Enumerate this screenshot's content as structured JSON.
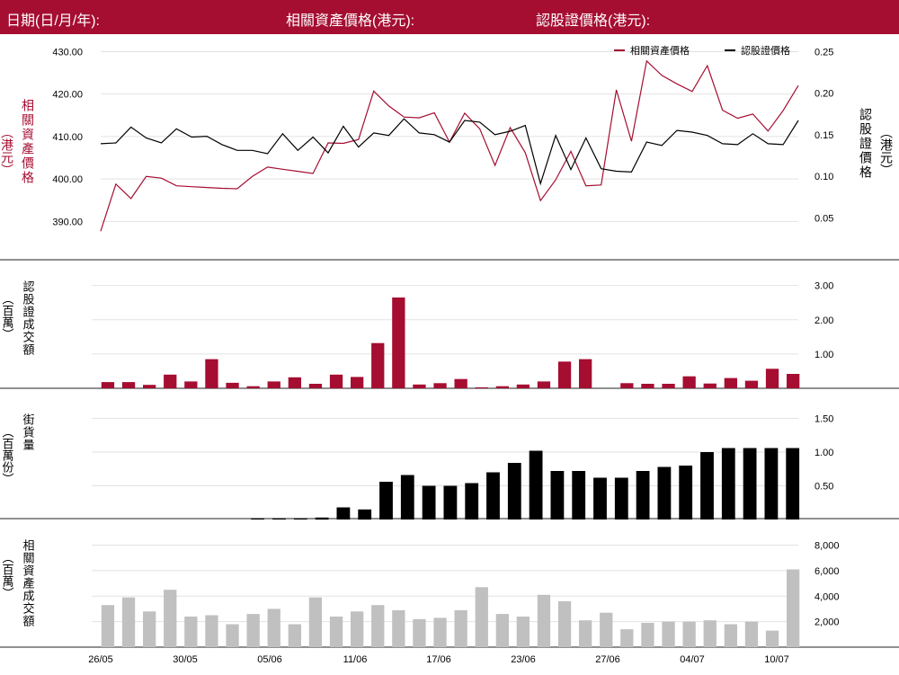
{
  "header": {
    "date_label": "日期(日/月/年):",
    "underlying_label": "相關資產價格(港元):",
    "warrant_label": "認股證價格(港元):"
  },
  "colors": {
    "brand": "#a50d31",
    "underlying_line": "#a50d31",
    "warrant_line": "#000000",
    "grey_bar": "#c0c0c0"
  },
  "chart_data": [
    {
      "type": "line",
      "panel": "price",
      "x": [
        "26/05",
        "27/05",
        "28/05",
        "29/05",
        "30/05",
        "31/05",
        "01/06",
        "02/06",
        "03/06",
        "04/06",
        "05/06",
        "06/06",
        "07/06",
        "08/06",
        "09/06",
        "10/06",
        "11/06",
        "12/06",
        "13/06",
        "14/06",
        "15/06",
        "16/06",
        "17/06",
        "18/06",
        "19/06",
        "20/06",
        "21/06",
        "22/06",
        "23/06",
        "24/06",
        "25/06",
        "26/06",
        "27/06",
        "28/06",
        "29/06",
        "30/06",
        "01/07",
        "02/07",
        "03/07",
        "04/07",
        "05/07",
        "06/07",
        "07/07",
        "08/07",
        "09/07",
        "10/07",
        "11/07"
      ],
      "legend": [
        "相關資產價格",
        "認股證價格"
      ],
      "left_axis": {
        "title": "相關資產價格（港元）",
        "ticks": [
          "430.00",
          "420.00",
          "410.00",
          "400.00",
          "390.00"
        ],
        "ylim": [
          385,
          432
        ]
      },
      "right_axis": {
        "title": "認股證價格（港元）",
        "ticks": [
          "0.25",
          "0.20",
          "0.15",
          "0.10",
          "0.05"
        ],
        "ylim": [
          0.02,
          0.26
        ]
      },
      "series": [
        {
          "name": "相關資產價格",
          "axis": "left",
          "color": "#a50d31",
          "values": [
            387.7,
            398.8,
            395.4,
            400.6,
            400.2,
            398.4,
            398.2,
            398.0,
            397.8,
            397.7,
            400.6,
            402.8,
            402.3,
            401.8,
            401.3,
            408.5,
            408.4,
            409.3,
            420.7,
            417.2,
            414.6,
            414.4,
            415.6,
            408.7,
            415.5,
            411.8,
            403.2,
            412.1,
            406.2,
            394.9,
            399.8,
            406.5,
            398.4,
            398.6,
            421.0,
            408.9,
            427.8,
            424.4,
            422.4,
            420.6,
            426.7,
            416.2,
            414.3,
            415.3,
            411.3,
            416.1,
            422.0
          ]
        },
        {
          "name": "認股證價格",
          "axis": "right",
          "color": "#000000",
          "values": [
            0.139,
            0.14,
            0.159,
            0.146,
            0.14,
            0.157,
            0.147,
            0.148,
            0.138,
            0.131,
            0.131,
            0.127,
            0.151,
            0.131,
            0.147,
            0.128,
            0.16,
            0.135,
            0.152,
            0.149,
            0.169,
            0.152,
            0.15,
            0.141,
            0.167,
            0.165,
            0.15,
            0.154,
            0.161,
            0.091,
            0.149,
            0.108,
            0.146,
            0.109,
            0.106,
            0.105,
            0.141,
            0.137,
            0.155,
            0.153,
            0.149,
            0.139,
            0.138,
            0.151,
            0.139,
            0.138,
            0.167
          ]
        }
      ]
    },
    {
      "type": "bar",
      "panel": "warrant_turnover",
      "ylabel": "認股證成交額（百萬）",
      "ticks": [
        "3.00",
        "2.00",
        "1.00"
      ],
      "ylim": [
        0,
        3.2
      ],
      "series": [
        {
          "name": "認股證成交額",
          "color": "#a50d31",
          "values": [
            0.18,
            0.18,
            0.1,
            0.4,
            0.2,
            0.85,
            0.16,
            0.06,
            0.2,
            0.32,
            0.13,
            0.4,
            0.33,
            1.32,
            2.65,
            0.11,
            0.15,
            0.27,
            0.03,
            0.06,
            0.11,
            0.2,
            0.78,
            0.85,
            0.0,
            0.15,
            0.13,
            0.13,
            0.35,
            0.14,
            0.3,
            0.22,
            0.57,
            0.42
          ]
        }
      ]
    },
    {
      "type": "bar",
      "panel": "outstanding",
      "ylabel": "街貨量（百萬份）",
      "ticks": [
        "1.50",
        "1.00",
        "0.50"
      ],
      "ylim": [
        0,
        1.6
      ],
      "series": [
        {
          "name": "街貨量",
          "color": "#000000",
          "values": [
            0,
            0,
            0,
            0,
            0,
            0,
            0,
            0.02,
            0.02,
            0.02,
            0.03,
            0.18,
            0.15,
            0.56,
            0.66,
            0.5,
            0.5,
            0.54,
            0.7,
            0.84,
            1.02,
            0.72,
            0.72,
            0.62,
            0.62,
            0.72,
            0.78,
            0.8,
            1.0,
            1.06,
            1.06,
            1.06,
            1.06
          ]
        }
      ]
    },
    {
      "type": "bar",
      "panel": "underlying_turnover",
      "ylabel": "相關資產成交額（百萬）",
      "ticks": [
        "8,000",
        "6,000",
        "4,000",
        "2,000"
      ],
      "ylim": [
        0,
        8600
      ],
      "series": [
        {
          "name": "相關資產成交額",
          "color": "#c0c0c0",
          "values": [
            3300,
            3900,
            2800,
            4500,
            2400,
            2500,
            1800,
            2600,
            3000,
            1800,
            3900,
            2400,
            2800,
            3300,
            2900,
            2200,
            2300,
            2900,
            4700,
            2600,
            2400,
            4100,
            3600,
            2100,
            2700,
            1400,
            1900,
            2000,
            2000,
            2100,
            1800,
            2000,
            1300,
            6100
          ]
        }
      ]
    }
  ],
  "x_axis": {
    "tick_labels": [
      "26/05",
      "30/05",
      "05/06",
      "11/06",
      "17/06",
      "23/06",
      "27/06",
      "04/07",
      "10/07"
    ]
  }
}
